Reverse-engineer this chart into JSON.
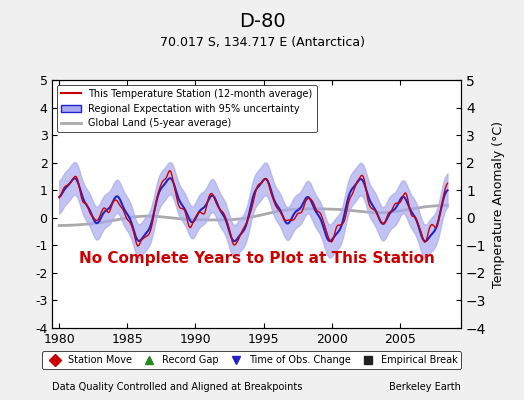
{
  "title": "D-80",
  "subtitle": "70.017 S, 134.717 E (Antarctica)",
  "xlabel_left": "Data Quality Controlled and Aligned at Breakpoints",
  "xlabel_right": "Berkeley Earth",
  "no_data_text": "No Complete Years to Plot at This Station",
  "ylim": [
    -4,
    5
  ],
  "xlim": [
    1979.5,
    2009.5
  ],
  "xticks": [
    1980,
    1985,
    1990,
    1995,
    2000,
    2005
  ],
  "yticks": [
    -4,
    -3,
    -2,
    -1,
    0,
    1,
    2,
    3,
    4,
    5
  ],
  "ylabel": "Temperature Anomaly (°C)",
  "background_color": "#f0f0f0",
  "plot_bg_color": "#ffffff",
  "station_color": "#cc0000",
  "regional_color": "#2222cc",
  "regional_fill_color": "#aaaaee",
  "global_color": "#aaaaaa",
  "no_data_color": "#cc0000",
  "legend_items": [
    {
      "label": "This Temperature Station (12-month average)",
      "color": "#cc0000",
      "lw": 1.5
    },
    {
      "label": "Regional Expectation with 95% uncertainty",
      "color": "#2222cc",
      "lw": 1.5
    },
    {
      "label": "Global Land (5-year average)",
      "color": "#aaaaaa",
      "lw": 2.0
    }
  ],
  "bottom_legend": [
    {
      "label": "Station Move",
      "marker": "D",
      "color": "#cc0000"
    },
    {
      "label": "Record Gap",
      "marker": "^",
      "color": "#228822"
    },
    {
      "label": "Time of Obs. Change",
      "marker": "v",
      "color": "#2222cc"
    },
    {
      "label": "Empirical Break",
      "marker": "s",
      "color": "#222222"
    }
  ]
}
